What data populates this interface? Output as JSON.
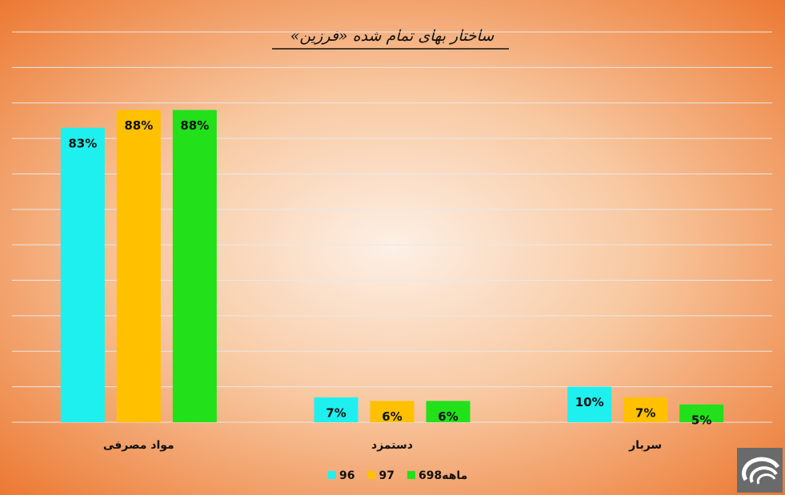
{
  "chart_data": {
    "type": "bar",
    "title": "ساختار بهای تمام شده «فرزین»",
    "categories": [
      "مواد مصرفی",
      "دستمزد",
      "سربار"
    ],
    "series": [
      {
        "name": "96",
        "color": "#1ef0f0",
        "values": [
          83,
          7,
          10
        ],
        "value_labels": [
          "83%",
          "7%",
          "10%"
        ]
      },
      {
        "name": "97",
        "color": "#ffc000",
        "values": [
          88,
          6,
          7
        ],
        "value_labels": [
          "88%",
          "6%",
          "7%"
        ]
      },
      {
        "name": "6ماهه98",
        "color": "#22e01a",
        "values": [
          88,
          6,
          5
        ],
        "value_labels": [
          "88%",
          "6%",
          "5%"
        ]
      }
    ],
    "ylim": [
      0,
      110
    ],
    "yticks": [
      0,
      10,
      20,
      30,
      40,
      50,
      60,
      70,
      80,
      90,
      100,
      110
    ],
    "grid": true,
    "legend": "bottom"
  }
}
